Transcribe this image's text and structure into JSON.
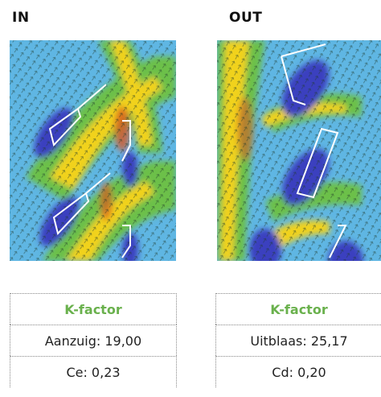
{
  "panels": [
    {
      "title": "IN",
      "table": {
        "header": "K-factor",
        "row1": "Aanzuig: 19,00",
        "row2": "Ce: 0,23"
      }
    },
    {
      "title": "OUT",
      "table": {
        "header": "K-factor",
        "row1": "Uitblaas: 25,17",
        "row2": "Cd: 0,20"
      }
    }
  ],
  "colors": {
    "background_field": "#5fb6e3",
    "low_velocity": "#3b3fbf",
    "mid_velocity": "#6cc04a",
    "high_velocity": "#f1d21d",
    "peak_velocity": "#d9561f",
    "header_green": "#6ab14d"
  }
}
